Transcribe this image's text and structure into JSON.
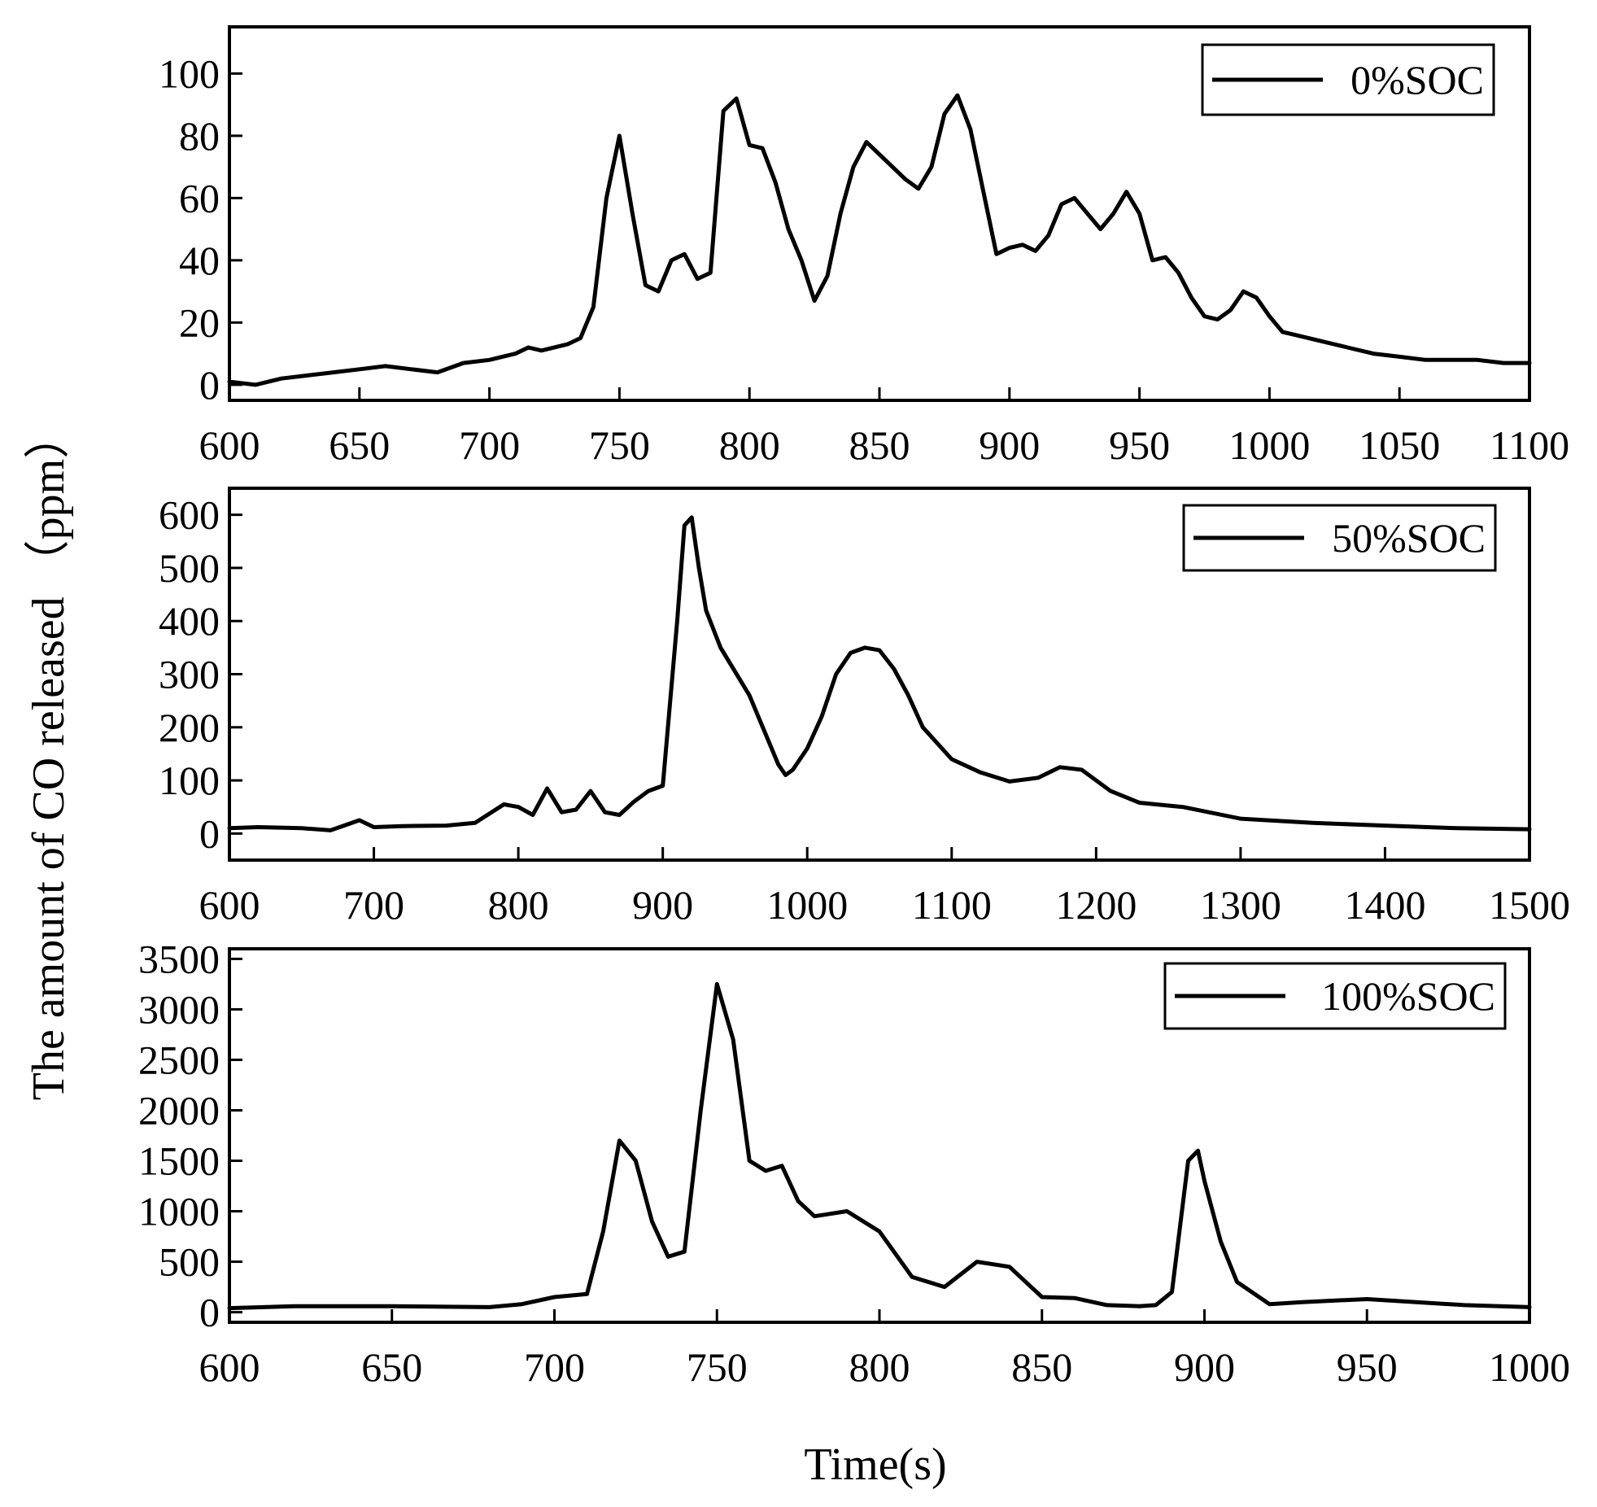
{
  "chart_data": {
    "type": "line",
    "xlabel": "Time(s)",
    "ylabel": "The amount of CO released （ppm）",
    "panels": [
      {
        "name": "0%SOC",
        "legend": "0%SOC",
        "legend_position": "top-right",
        "xlim": [
          600,
          1100
        ],
        "ylim": [
          -5,
          115
        ],
        "xticks": [
          600,
          650,
          700,
          750,
          800,
          850,
          900,
          950,
          1000,
          1050,
          1100
        ],
        "yticks": [
          0,
          20,
          40,
          60,
          80,
          100
        ],
        "x": [
          600,
          610,
          620,
          630,
          640,
          650,
          660,
          670,
          680,
          690,
          700,
          710,
          715,
          720,
          730,
          735,
          740,
          745,
          750,
          755,
          760,
          765,
          770,
          775,
          780,
          785,
          790,
          795,
          800,
          805,
          810,
          815,
          820,
          825,
          830,
          835,
          840,
          845,
          850,
          855,
          860,
          865,
          870,
          875,
          880,
          885,
          890,
          895,
          900,
          905,
          910,
          915,
          920,
          925,
          930,
          935,
          940,
          945,
          950,
          955,
          960,
          965,
          970,
          975,
          980,
          985,
          990,
          995,
          1000,
          1005,
          1010,
          1020,
          1030,
          1040,
          1050,
          1060,
          1070,
          1080,
          1090,
          1100
        ],
        "y": [
          1,
          0,
          2,
          3,
          4,
          5,
          6,
          5,
          4,
          7,
          8,
          10,
          12,
          11,
          13,
          15,
          25,
          60,
          80,
          55,
          32,
          30,
          40,
          42,
          34,
          36,
          88,
          92,
          77,
          76,
          65,
          50,
          40,
          27,
          35,
          55,
          70,
          78,
          74,
          70,
          66,
          63,
          70,
          87,
          93,
          82,
          62,
          42,
          44,
          45,
          43,
          48,
          58,
          60,
          55,
          50,
          55,
          62,
          55,
          40,
          41,
          36,
          28,
          22,
          21,
          24,
          30,
          28,
          22,
          17,
          16,
          14,
          12,
          10,
          9,
          8,
          8,
          8,
          7,
          7
        ]
      },
      {
        "name": "50%SOC",
        "legend": "50%SOC",
        "legend_position": "top-right",
        "xlim": [
          600,
          1500
        ],
        "ylim": [
          -50,
          650
        ],
        "xticks": [
          600,
          700,
          800,
          900,
          1000,
          1100,
          1200,
          1300,
          1400,
          1500
        ],
        "yticks": [
          0,
          100,
          200,
          300,
          400,
          500,
          600
        ],
        "x": [
          600,
          620,
          650,
          670,
          690,
          700,
          720,
          750,
          770,
          790,
          800,
          810,
          820,
          830,
          840,
          850,
          860,
          870,
          880,
          890,
          900,
          910,
          915,
          920,
          925,
          930,
          940,
          960,
          980,
          985,
          990,
          1000,
          1010,
          1020,
          1030,
          1040,
          1050,
          1060,
          1070,
          1080,
          1100,
          1120,
          1140,
          1160,
          1175,
          1190,
          1210,
          1230,
          1260,
          1300,
          1350,
          1400,
          1450,
          1500
        ],
        "y": [
          10,
          12,
          10,
          6,
          25,
          12,
          14,
          15,
          20,
          55,
          50,
          35,
          85,
          40,
          45,
          80,
          40,
          35,
          60,
          80,
          90,
          400,
          580,
          595,
          500,
          420,
          350,
          260,
          130,
          110,
          120,
          160,
          220,
          300,
          340,
          350,
          345,
          310,
          260,
          200,
          140,
          115,
          98,
          105,
          125,
          120,
          80,
          58,
          50,
          28,
          20,
          15,
          10,
          8
        ]
      },
      {
        "name": "100%SOC",
        "legend": "100%SOC",
        "legend_position": "top-right",
        "xlim": [
          600,
          1000
        ],
        "ylim": [
          -100,
          3600
        ],
        "xticks": [
          600,
          650,
          700,
          750,
          800,
          850,
          900,
          950,
          1000
        ],
        "yticks": [
          0,
          500,
          1000,
          1500,
          2000,
          2500,
          3000,
          3500
        ],
        "x": [
          600,
          620,
          650,
          680,
          690,
          700,
          710,
          715,
          720,
          725,
          730,
          735,
          740,
          745,
          750,
          755,
          760,
          765,
          770,
          775,
          780,
          790,
          800,
          810,
          820,
          830,
          840,
          845,
          850,
          860,
          870,
          880,
          885,
          890,
          895,
          898,
          900,
          905,
          910,
          920,
          930,
          950,
          980,
          1000
        ],
        "y": [
          40,
          60,
          60,
          50,
          80,
          150,
          180,
          800,
          1700,
          1500,
          900,
          550,
          600,
          2000,
          3250,
          2700,
          1500,
          1400,
          1450,
          1100,
          950,
          1000,
          800,
          350,
          250,
          500,
          450,
          300,
          150,
          140,
          70,
          60,
          70,
          200,
          1500,
          1600,
          1300,
          700,
          300,
          80,
          100,
          130,
          70,
          50
        ]
      }
    ]
  }
}
